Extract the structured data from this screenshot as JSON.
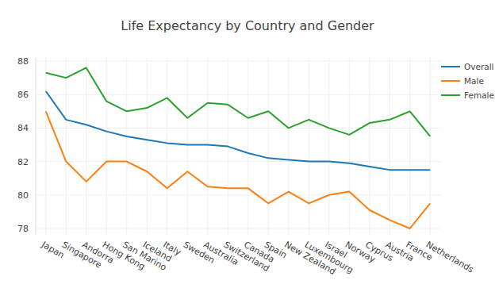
{
  "chart_data": {
    "type": "line",
    "title": "Life Expectancy by Country and Gender",
    "categories": [
      "Japan",
      "Singapore",
      "Andorra",
      "Hong Kong",
      "San Marino",
      "Iceland",
      "Italy",
      "Sweden",
      "Australia",
      "Switzerland",
      "Canada",
      "Spain",
      "New Zealand",
      "Luxembourg",
      "Israel",
      "Norway",
      "Cyprus",
      "Austria",
      "France",
      "Netherlands"
    ],
    "series": [
      {
        "name": "Overall",
        "color": "#1f77b4",
        "values": [
          86.2,
          84.5,
          84.2,
          83.8,
          83.5,
          83.3,
          83.1,
          83.0,
          83.0,
          82.9,
          82.5,
          82.2,
          82.1,
          82.0,
          82.0,
          81.9,
          81.7,
          81.5,
          81.5,
          81.5
        ]
      },
      {
        "name": "Male",
        "color": "#ff7f0e",
        "values": [
          85.0,
          82.0,
          80.8,
          82.0,
          82.0,
          81.4,
          80.4,
          81.4,
          80.5,
          80.4,
          80.4,
          79.5,
          80.2,
          79.5,
          80.0,
          80.2,
          79.1,
          78.5,
          78.0,
          79.5
        ]
      },
      {
        "name": "Female",
        "color": "#2ca02c",
        "values": [
          87.3,
          87.0,
          87.6,
          85.6,
          85.0,
          85.2,
          85.8,
          84.6,
          85.5,
          85.4,
          84.6,
          85.0,
          84.0,
          84.5,
          84.0,
          83.6,
          84.3,
          84.5,
          85.0,
          83.5
        ]
      }
    ],
    "ylim": [
      77.6,
      88.2
    ],
    "yticks": [
      78,
      80,
      82,
      84,
      86,
      88
    ],
    "grid": true,
    "legend": "top-right"
  }
}
